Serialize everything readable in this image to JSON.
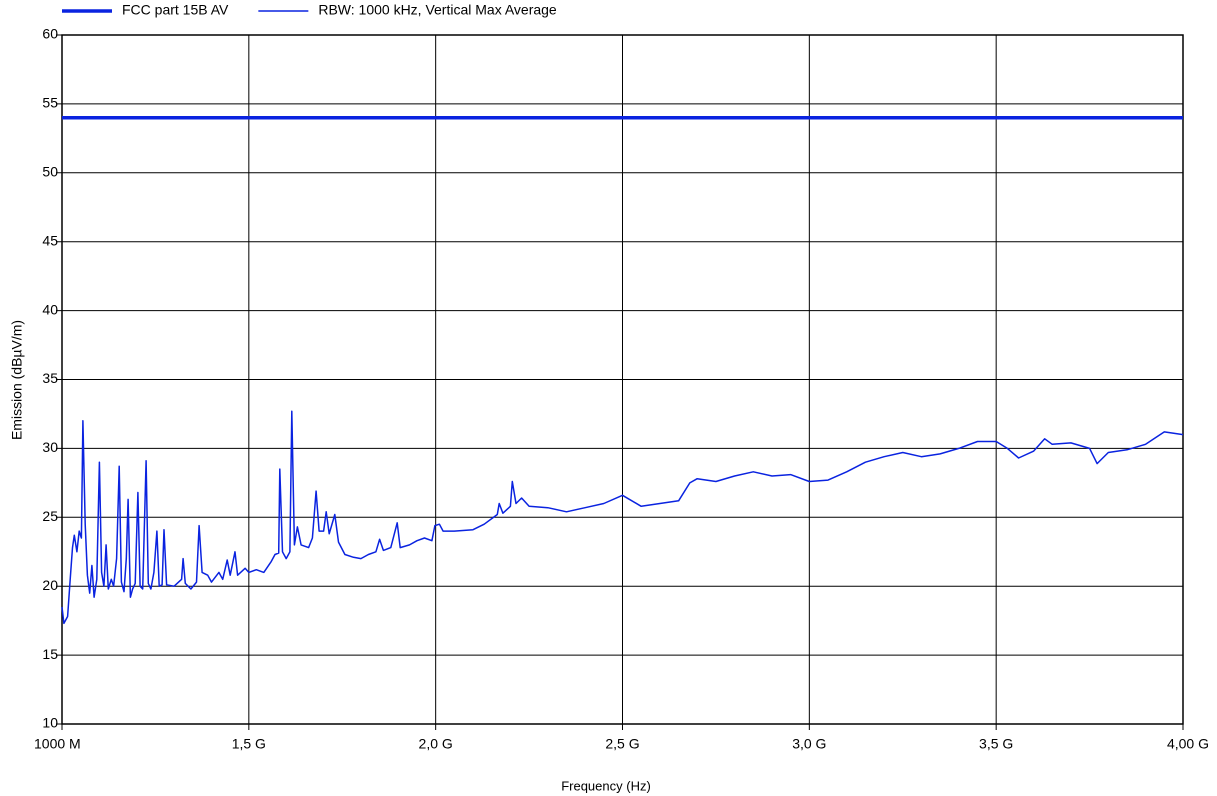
{
  "chart_data": {
    "type": "line",
    "xlabel": "Frequency (Hz)",
    "ylabel": "Emission (dBµV/m)",
    "xlim": [
      1000000000,
      4000000000
    ],
    "xticks": [
      {
        "value": 1000000000,
        "label": "1000 M"
      },
      {
        "value": 1500000000,
        "label": "1,5 G"
      },
      {
        "value": 2000000000,
        "label": "2,0 G"
      },
      {
        "value": 2500000000,
        "label": "2,5 G"
      },
      {
        "value": 3000000000,
        "label": "3,0 G"
      },
      {
        "value": 3500000000,
        "label": "3,5 G"
      },
      {
        "value": 4000000000,
        "label": "4,00 G"
      }
    ],
    "ylim": [
      10,
      60
    ],
    "yticks": [
      10,
      15,
      20,
      25,
      30,
      35,
      40,
      45,
      50,
      55,
      60
    ],
    "grid": true,
    "series": [
      {
        "name": "FCC part 15B AV",
        "color": "#0a23e0",
        "line_width": 3.5,
        "x": [
          1000000000,
          4000000000
        ],
        "values": [
          54,
          54
        ]
      },
      {
        "name": "RBW: 1000 kHz, Vertical Max Average",
        "color": "#0a23e0",
        "line_width": 1.5,
        "x": [
          1000000000,
          1005000000,
          1015000000,
          1022000000,
          1028000000,
          1033000000,
          1040000000,
          1046000000,
          1052000000,
          1056000000,
          1062000000,
          1068000000,
          1074000000,
          1080000000,
          1086000000,
          1093000000,
          1100000000,
          1106000000,
          1112000000,
          1118000000,
          1124000000,
          1132000000,
          1138000000,
          1146000000,
          1153000000,
          1159000000,
          1166000000,
          1172000000,
          1177000000,
          1183000000,
          1189000000,
          1196000000,
          1203000000,
          1209000000,
          1216000000,
          1225000000,
          1231000000,
          1238000000,
          1246000000,
          1254000000,
          1260000000,
          1268000000,
          1273000000,
          1280000000,
          1300000000,
          1320000000,
          1324000000,
          1330000000,
          1345000000,
          1360000000,
          1367000000,
          1375000000,
          1390000000,
          1400000000,
          1420000000,
          1430000000,
          1442000000,
          1450000000,
          1463000000,
          1470000000,
          1490000000,
          1500000000,
          1520000000,
          1540000000,
          1560000000,
          1570000000,
          1580000000,
          1583000000,
          1590000000,
          1600000000,
          1610000000,
          1615000000,
          1622000000,
          1630000000,
          1640000000,
          1660000000,
          1670000000,
          1680000000,
          1688000000,
          1700000000,
          1707000000,
          1715000000,
          1730000000,
          1740000000,
          1757000000,
          1780000000,
          1800000000,
          1820000000,
          1840000000,
          1850000000,
          1860000000,
          1880000000,
          1897000000,
          1905000000,
          1930000000,
          1950000000,
          1970000000,
          1990000000,
          1998000000,
          2010000000,
          2020000000,
          2050000000,
          2100000000,
          2130000000,
          2165000000,
          2170000000,
          2180000000,
          2200000000,
          2205000000,
          2215000000,
          2230000000,
          2250000000,
          2300000000,
          2350000000,
          2400000000,
          2450000000,
          2500000000,
          2550000000,
          2600000000,
          2650000000,
          2680000000,
          2700000000,
          2750000000,
          2800000000,
          2850000000,
          2900000000,
          2950000000,
          3000000000,
          3050000000,
          3100000000,
          3150000000,
          3200000000,
          3250000000,
          3300000000,
          3350000000,
          3400000000,
          3450000000,
          3500000000,
          3530000000,
          3560000000,
          3600000000,
          3630000000,
          3650000000,
          3700000000,
          3750000000,
          3770000000,
          3800000000,
          3850000000,
          3900000000,
          3950000000,
          4000000000
        ],
        "values": [
          18.5,
          17.3,
          17.8,
          20.5,
          22.8,
          23.7,
          22.5,
          24,
          23.5,
          32,
          24.5,
          20.8,
          19.5,
          21.5,
          19.2,
          20.5,
          29,
          21,
          20,
          23,
          19.8,
          20.5,
          20,
          22,
          28.7,
          20.3,
          19.6,
          22,
          26.3,
          19.2,
          19.8,
          20.2,
          26.8,
          20,
          19.8,
          29.1,
          20.2,
          19.8,
          21,
          24,
          20,
          20.1,
          24.1,
          20.1,
          20,
          20.5,
          22,
          20.2,
          19.8,
          20.3,
          24.4,
          21,
          20.8,
          20.3,
          21,
          20.5,
          21.9,
          20.8,
          22.5,
          20.8,
          21.3,
          21,
          21.2,
          21,
          21.8,
          22.3,
          22.4,
          28.5,
          22.5,
          22,
          22.5,
          32.7,
          23,
          24.3,
          23,
          22.8,
          23.5,
          26.9,
          24,
          24,
          25.4,
          23.8,
          25.2,
          23.2,
          22.3,
          22.1,
          22,
          22.3,
          22.5,
          23.4,
          22.6,
          22.8,
          24.6,
          22.8,
          23,
          23.3,
          23.5,
          23.3,
          24.4,
          24.5,
          24,
          24,
          24.1,
          24.5,
          25.2,
          26,
          25.3,
          25.8,
          27.6,
          26,
          26.4,
          25.8,
          25.7,
          25.4,
          25.7,
          26,
          26.6,
          25.8,
          26,
          26.2,
          27.5,
          27.8,
          27.6,
          28,
          28.3,
          28,
          28.1,
          27.6,
          27.7,
          28.3,
          29,
          29.4,
          29.7,
          29.4,
          29.6,
          30,
          30.5,
          30.5,
          30,
          29.3,
          29.8,
          30.7,
          30.3,
          30.4,
          30,
          28.9,
          29.7,
          29.9,
          30.3,
          31.2,
          31
        ]
      }
    ]
  }
}
